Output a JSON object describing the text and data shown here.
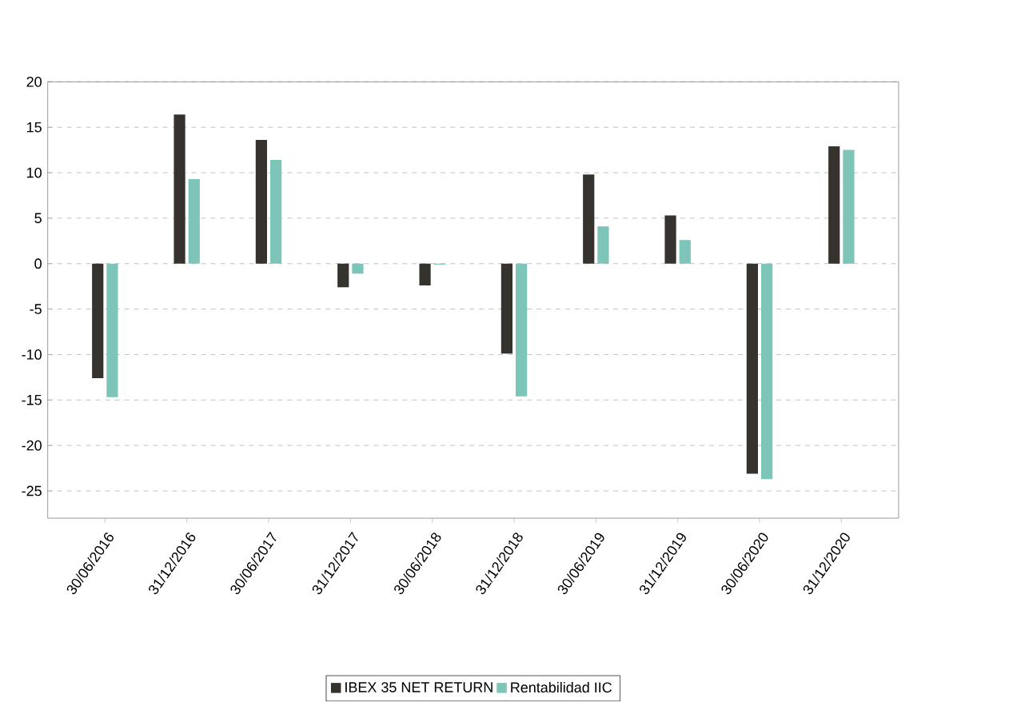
{
  "chart_data": {
    "type": "bar",
    "categories": [
      "30/06/2016",
      "31/12/2016",
      "30/06/2017",
      "31/12/2017",
      "30/06/2018",
      "31/12/2018",
      "30/06/2019",
      "31/12/2019",
      "30/06/2020",
      "31/12/2020"
    ],
    "series": [
      {
        "name": "IBEX 35 NET RETURN",
        "color": "#36322d",
        "values": [
          -12.6,
          16.4,
          13.6,
          -2.6,
          -2.4,
          -9.9,
          9.8,
          5.3,
          -23.1,
          12.9
        ]
      },
      {
        "name": "Rentabilidad IIC",
        "color": "#7cc5b8",
        "values": [
          -14.7,
          9.3,
          11.4,
          -1.1,
          -0.1,
          -14.6,
          4.1,
          2.6,
          -23.7,
          12.5
        ]
      }
    ],
    "ylim": [
      -28,
      20
    ],
    "yticks": [
      -25,
      -20,
      -15,
      -10,
      -5,
      0,
      5,
      10,
      15,
      20
    ],
    "grid": "y",
    "legend": "bottom"
  }
}
